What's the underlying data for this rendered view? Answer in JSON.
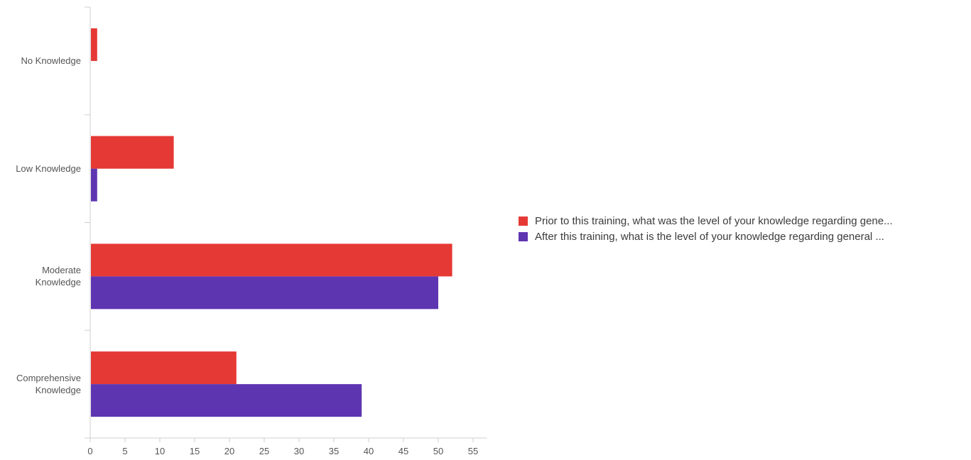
{
  "chart_data": {
    "type": "bar",
    "orientation": "horizontal",
    "categories": [
      "No Knowledge",
      "Low Knowledge",
      "Moderate Knowledge",
      "Comprehensive Knowledge"
    ],
    "category_lines": [
      [
        "No Knowledge"
      ],
      [
        "Low Knowledge"
      ],
      [
        "Moderate",
        "Knowledge"
      ],
      [
        "Comprehensive",
        "Knowledge"
      ]
    ],
    "series": [
      {
        "name": "Prior to this training, what was the level of your knowledge regarding gene...",
        "color": "#e53935",
        "values": [
          1,
          12,
          52,
          21
        ]
      },
      {
        "name": "After this training, what is the level of your knowledge regarding general ...",
        "color": "#5e35b1",
        "values": [
          0,
          1,
          50,
          39
        ]
      }
    ],
    "xlim": [
      0,
      57
    ],
    "xticks": [
      0,
      5,
      10,
      15,
      20,
      25,
      30,
      35,
      40,
      45,
      50,
      55
    ],
    "grid": false,
    "legend_position": "right"
  }
}
